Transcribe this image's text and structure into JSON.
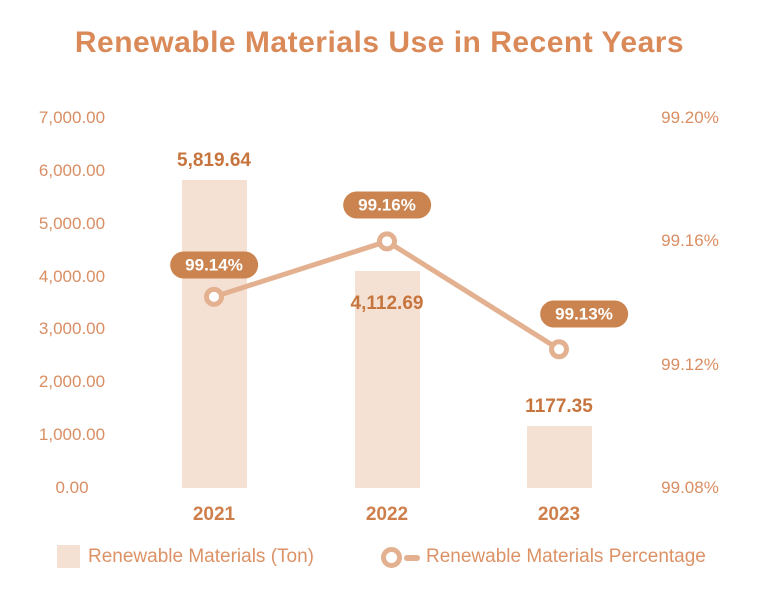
{
  "title": "Renewable Materials Use in Recent Years",
  "chart_data": {
    "type": "bar",
    "subtype": "combo-bar-line-dual-axis",
    "categories": [
      "2021",
      "2022",
      "2023"
    ],
    "series": [
      {
        "name": "Renewable Materials (Ton)",
        "type": "bar",
        "axis": "left",
        "values": [
          5819.64,
          4112.69,
          1177.35
        ],
        "labels": [
          "5,819.64",
          "4,112.69",
          "1177.35"
        ]
      },
      {
        "name": "Renewable Materials Percentage",
        "type": "line",
        "axis": "right",
        "values": [
          99.142,
          99.16,
          99.125
        ],
        "labels": [
          "99.14%",
          "99.16%",
          "99.13%"
        ]
      }
    ],
    "title": "Renewable Materials Use in Recent Years",
    "xlabel": "",
    "ylabel_left": "",
    "ylabel_right": "",
    "left_axis": {
      "min": 0,
      "max": 7000,
      "tick_labels": [
        "7,000.00",
        "6,000.00",
        "5,000.00",
        "4,000.00",
        "3,000.00",
        "2,000.00",
        "1,000.00",
        "0.00"
      ],
      "tick_values": [
        7000,
        6000,
        5000,
        4000,
        3000,
        2000,
        1000,
        0
      ]
    },
    "right_axis": {
      "min": 99.08,
      "max": 99.2,
      "tick_labels": [
        "99.20%",
        "99.16%",
        "99.12%",
        "99.08%"
      ],
      "tick_values": [
        99.2,
        99.16,
        99.12,
        99.08
      ]
    },
    "grid": false,
    "legend_position": "bottom",
    "layout_hints": {
      "bar_label_inside": [
        false,
        true,
        false
      ],
      "badge_offset_x": [
        0,
        0,
        25
      ],
      "badge_offset_y": [
        -32,
        -36,
        -35
      ]
    }
  },
  "legend": {
    "items": [
      {
        "label": "Renewable Materials (Ton)",
        "marker": "square"
      },
      {
        "label": "Renewable Materials Percentage",
        "marker": "circle-line"
      }
    ]
  },
  "colors": {
    "background": "#FFFFFF",
    "title": "#DA8A58",
    "axis_tick": "#D98E63",
    "x_label": "#CE7F4B",
    "bar_fill": "#F5E1D3",
    "bar_label": "#C7753E",
    "line": "#E3B190",
    "marker_fill": "#FFFFFF",
    "badge_bg": "#CB8450",
    "badge_text": "#FFFFFF",
    "legend_text": "#DC9266"
  }
}
